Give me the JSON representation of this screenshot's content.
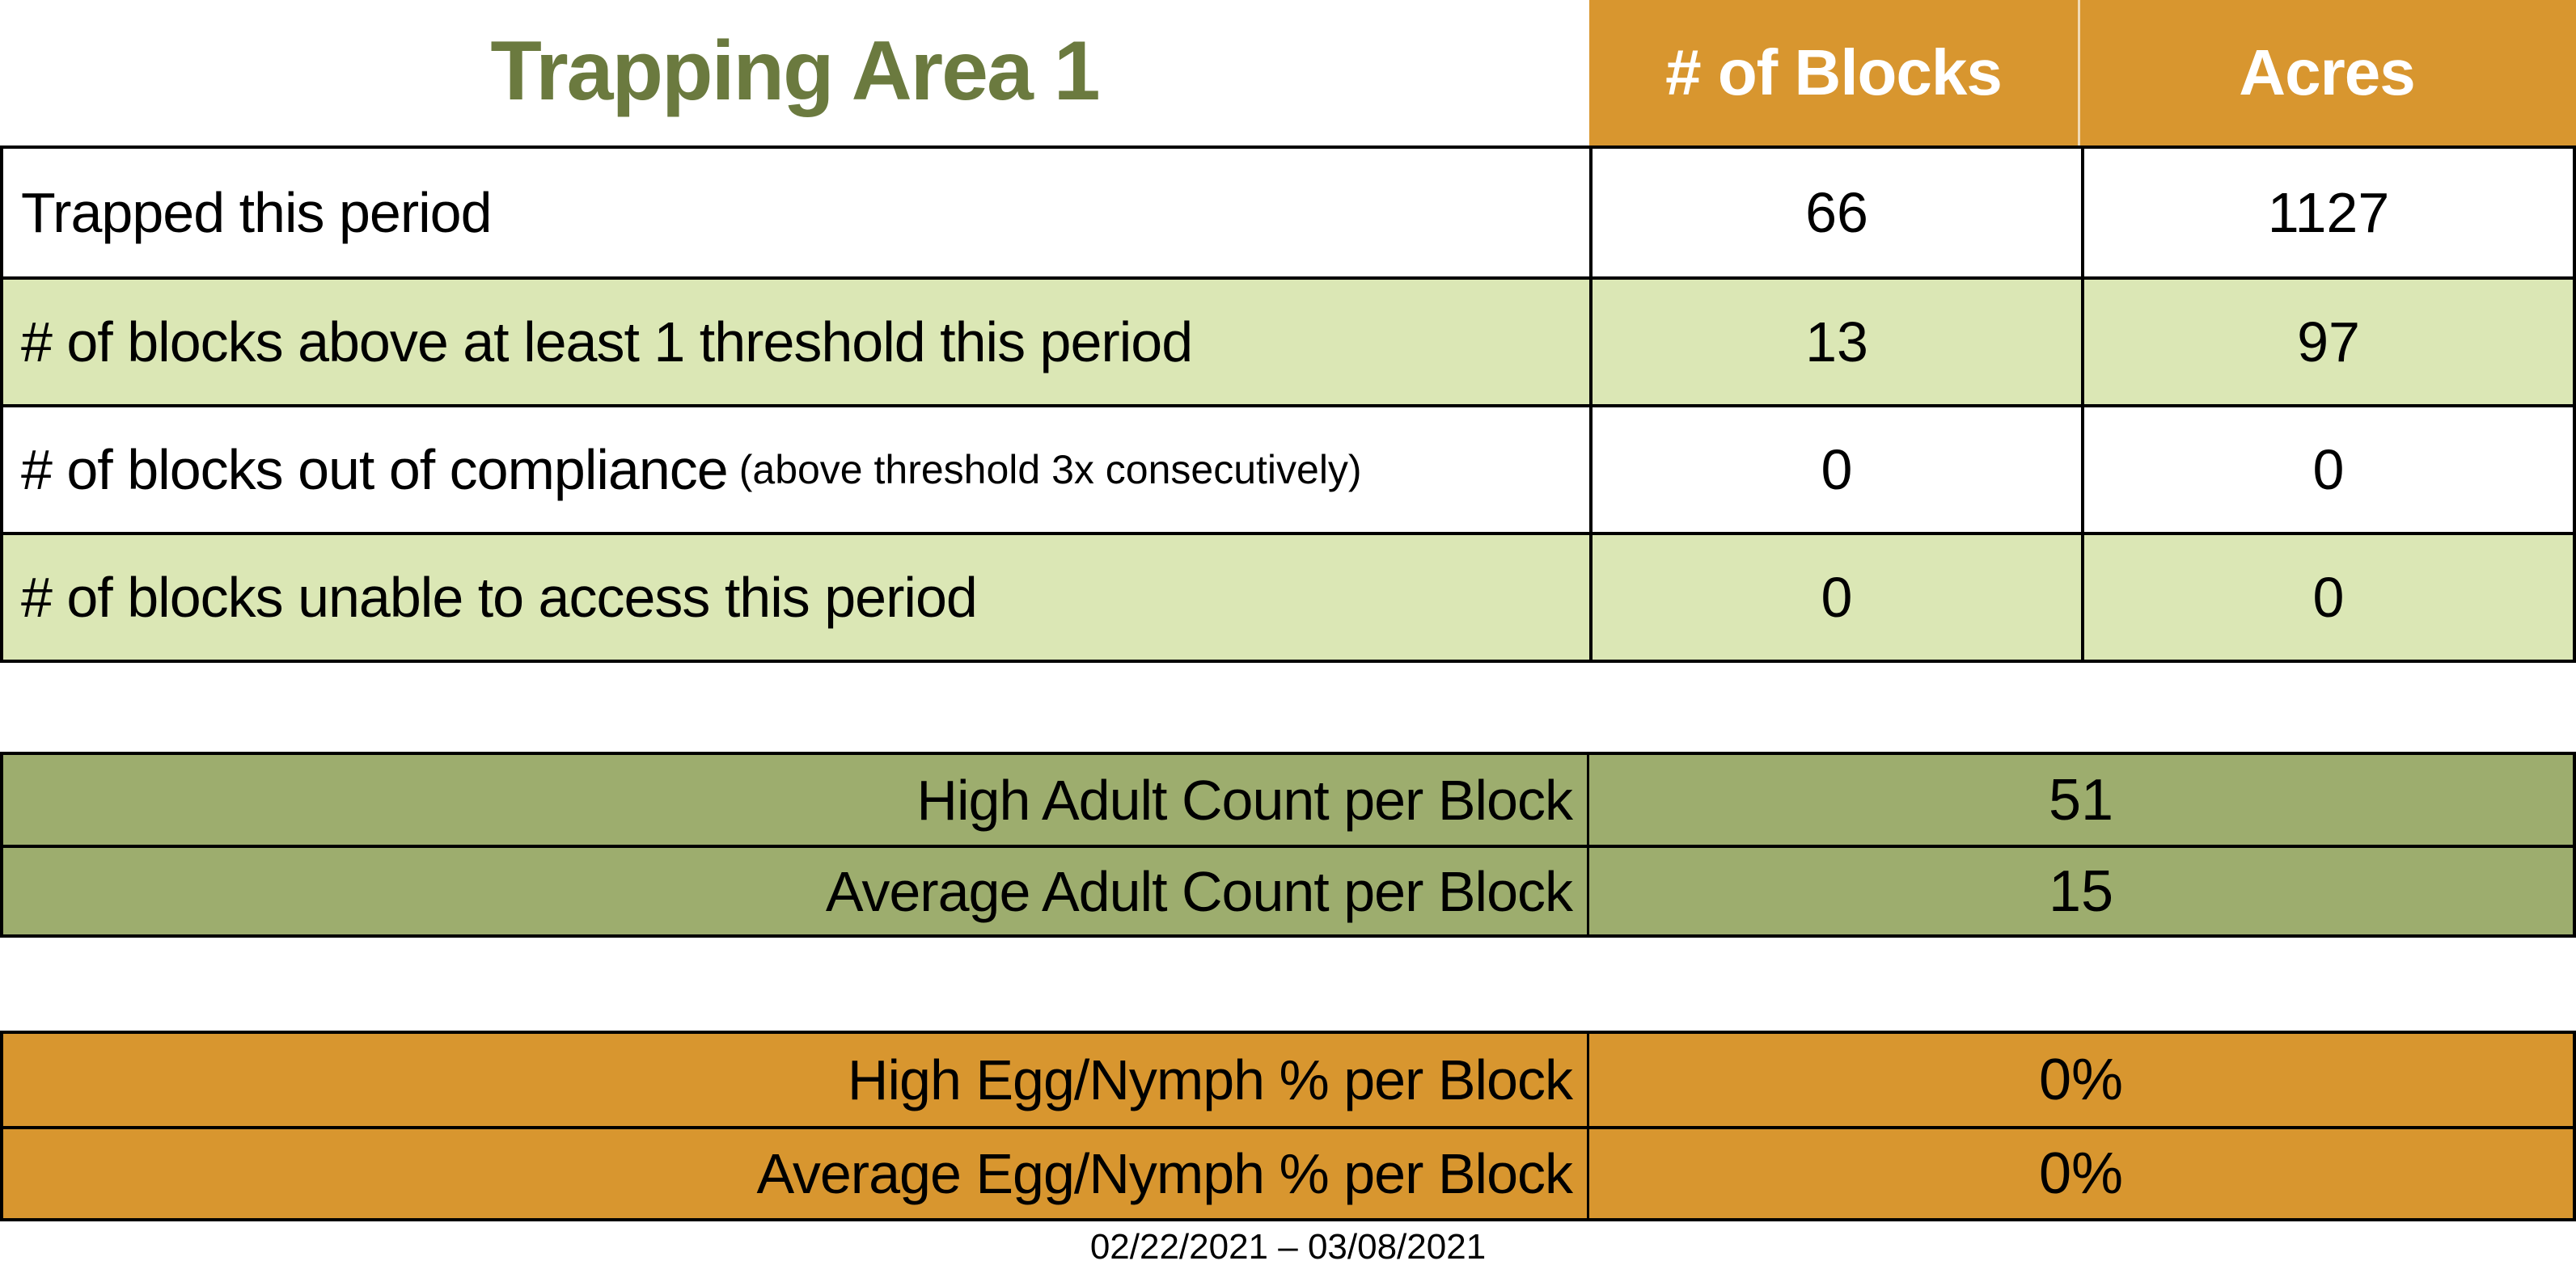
{
  "title": "Trapping Area 1",
  "columns": [
    "# of Blocks",
    "Acres"
  ],
  "main_table": {
    "rows": [
      {
        "label": "Trapped this period",
        "blocks": "66",
        "acres": "1127"
      },
      {
        "label": "# of blocks above at least 1 threshold this period",
        "blocks": "13",
        "acres": "97"
      },
      {
        "label": "# of blocks out of compliance",
        "note": "(above threshold 3x consecutively)",
        "blocks": "0",
        "acres": "0"
      },
      {
        "label": "# of blocks unable to access this period",
        "blocks": "0",
        "acres": "0"
      }
    ]
  },
  "adult_section": {
    "rows": [
      {
        "label": "High Adult Count per Block",
        "value": "51"
      },
      {
        "label": "Average Adult Count per Block",
        "value": "15"
      }
    ]
  },
  "egg_section": {
    "rows": [
      {
        "label": "High Egg/Nymph % per Block",
        "value": "0%"
      },
      {
        "label": "Average Egg/Nymph % per Block",
        "value": "0%"
      }
    ]
  },
  "date_range": "02/22/2021 – 03/08/2021",
  "colors": {
    "header_orange": "#D8962F",
    "row_light_green": "#DBE7B5",
    "section_olive": "#9DAD6E",
    "title_green": "#6B7A3F",
    "border": "#000000",
    "header_text": "#FFFFFF"
  }
}
